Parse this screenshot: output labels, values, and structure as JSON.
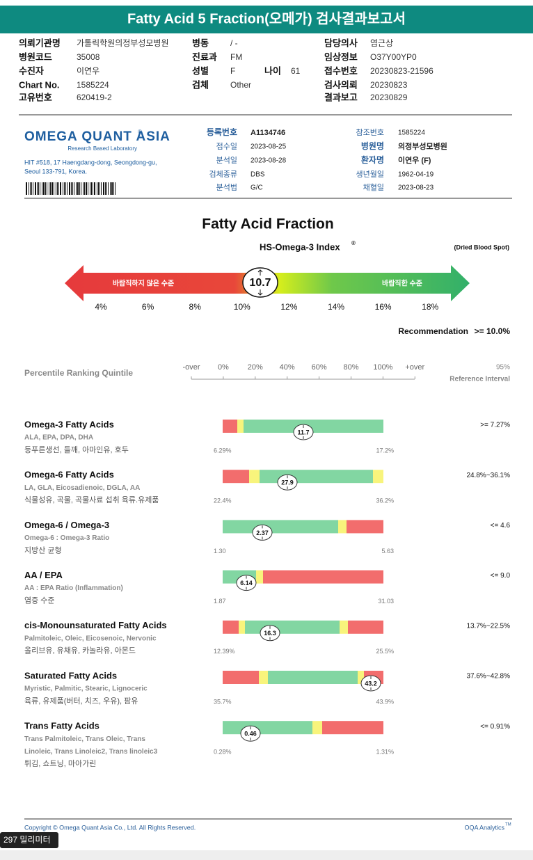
{
  "header": {
    "title": "Fatty Acid 5 Fraction(오메가) 검사결과보고서"
  },
  "patient_info": [
    {
      "label": "의뢰기관명",
      "value": "가톨릭학원의정부성모병원"
    },
    {
      "label": "병동",
      "value": "/ -"
    },
    {
      "label": "담당의사",
      "value": "염근상"
    },
    {
      "label": "병원코드",
      "value": "35008"
    },
    {
      "label": "진료과",
      "value": "FM"
    },
    {
      "label": "임상정보",
      "value": "O37Y00YP0"
    },
    {
      "label": "수진자",
      "value": "이연우"
    },
    {
      "label": "성별",
      "value": "F"
    },
    {
      "label": "나이",
      "value": "61"
    },
    {
      "label": "접수번호",
      "value": "20230823-21596"
    },
    {
      "label": "Chart No.",
      "value": "1585224"
    },
    {
      "label": "검체",
      "value": "Other"
    },
    {
      "label": "검사의뢰",
      "value": "20230823"
    },
    {
      "label": "고유번호",
      "value": "620419-2"
    },
    {
      "label": "결과보고",
      "value": "20230829"
    }
  ],
  "lab": {
    "logo": "OMEGA QUANT ASIA",
    "logo_mark": "®",
    "tagline": "Research Based Laboratory",
    "address": [
      "HIT #518, 17 Haengdang-dong, Seongdong-gu,",
      "Seoul 133-791, Korea."
    ],
    "fields_left": [
      {
        "label": "등록번호",
        "value": "A1134746"
      },
      {
        "label": "접수일",
        "value": "2023-08-25"
      },
      {
        "label": "분석일",
        "value": "2023-08-28"
      },
      {
        "label": "검체종류",
        "value": "DBS"
      },
      {
        "label": "분석법",
        "value": "G/C"
      }
    ],
    "fields_right": [
      {
        "label": "참조번호",
        "value": "1585224"
      },
      {
        "label": "병원명",
        "value": "의정부성모병원"
      },
      {
        "label": "환자명",
        "value": "이연우 (F)"
      },
      {
        "label": "생년월일",
        "value": "1962-04-19"
      },
      {
        "label": "채혈일",
        "value": "2023-08-23"
      }
    ]
  },
  "report": {
    "title": "Fatty Acid Fraction",
    "index_title": "HS-Omega-3 Index",
    "index_mark": "®",
    "specimen": "(Dried Blood Spot)",
    "value": "10.7",
    "scale_low": "바람직하지 않은 수준",
    "scale_high": "바람직한 수준",
    "scale_ticks": [
      "4%",
      "6%",
      "8%",
      "10%",
      "12%",
      "14%",
      "16%",
      "18%"
    ],
    "recommendation_label": "Recommendation",
    "recommendation": ">= 10.0%"
  },
  "percentile": {
    "label": "Percentile Ranking Quintile",
    "ticks": [
      "-over",
      "0%",
      "20%",
      "40%",
      "60%",
      "80%",
      "100%",
      "+over"
    ],
    "ref_pct": "95%",
    "ref_label": "Reference Interval"
  },
  "results": [
    {
      "name": "Omega-3 Fatty Acids",
      "components": [
        "ALA, EPA, DPA, DHA"
      ],
      "foods": "등푸른생선, 들깨, 아마인유, 호두",
      "value": "11.7",
      "min": "6.29%",
      "max": "17.2%",
      "reference": ">= 7.27%"
    },
    {
      "name": "Omega-6 Fatty Acids",
      "components": [
        "LA, GLA, Eicosadienoic, DGLA, AA"
      ],
      "foods": "식물성유, 곡물, 곡물사료 섭취 육류.유제품",
      "value": "27.9",
      "min": "22.4%",
      "max": "36.2%",
      "reference": "24.8%~36.1%"
    },
    {
      "name": "Omega-6 / Omega-3",
      "components": [
        "Omega-6 : Omega-3 Ratio"
      ],
      "foods": "지방산 균형",
      "value": "2.37",
      "min": "1.30",
      "max": "5.63",
      "reference": "<= 4.6"
    },
    {
      "name": "AA / EPA",
      "components": [
        "AA : EPA Ratio (Inflammation)"
      ],
      "foods": "염증 수준",
      "value": "6.14",
      "min": "1.87",
      "max": "31.03",
      "reference": "<= 9.0"
    },
    {
      "name": "cis-Monounsaturated Fatty Acids",
      "components": [
        "Palmitoleic, Oleic, Eicosenoic, Nervonic"
      ],
      "foods": "올리브유, 유채유, 카놀라유, 아몬드",
      "value": "16.3",
      "min": "12.39%",
      "max": "25.5%",
      "reference": "13.7%~22.5%"
    },
    {
      "name": "Saturated Fatty Acids",
      "components": [
        "Myristic, Palmitic, Stearic, Lignoceric"
      ],
      "foods": "육류, 유제품(버터, 치즈, 우유), 팜유",
      "value": "43.2",
      "min": "35.7%",
      "max": "43.9%",
      "reference": "37.6%~42.8%"
    },
    {
      "name": "Trans Fatty Acids",
      "components": [
        "Trans Palmitoleic, Trans Oleic, Trans",
        "Linoleic, Trans Linoleic2, Trans linoleic3"
      ],
      "foods": "튀김, 쇼트닝, 마아가린",
      "value": "0.46",
      "min": "0.28%",
      "max": "1.31%",
      "reference": "<= 0.91%"
    }
  ],
  "footer": {
    "copyright": "Copyright © Omega Quant Asia Co., Ltd.  All Rights Reserved.",
    "brand": "OQA Analytics",
    "brand_mark": "TM"
  },
  "overlay": {
    "text": "297 밀리미터"
  }
}
